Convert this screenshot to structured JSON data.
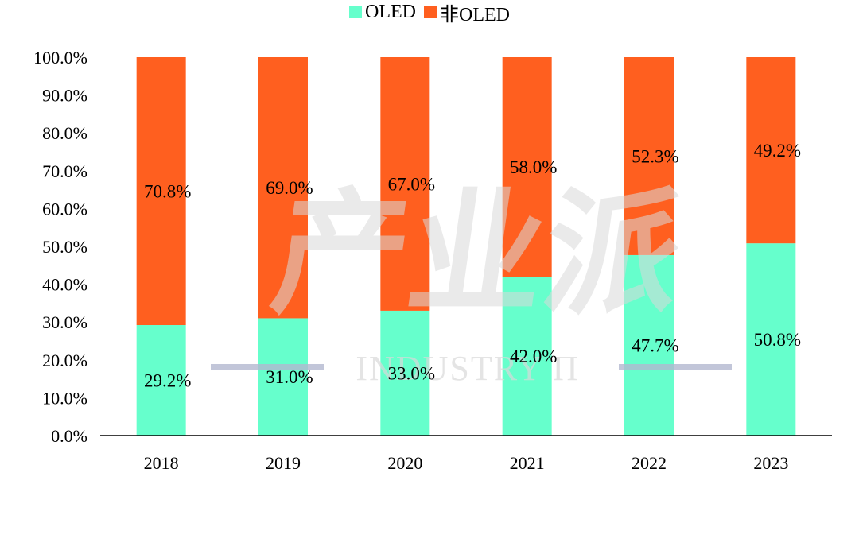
{
  "legend": [
    {
      "label": "OLED",
      "color": "#66FFCC"
    },
    {
      "label": "非OLED",
      "color": "#FF5F1F"
    }
  ],
  "watermark": {
    "main": "产业派",
    "sub": "INDUSTRY Π"
  },
  "chart_data": {
    "type": "bar",
    "stacked": true,
    "categories": [
      "2018",
      "2019",
      "2020",
      "2021",
      "2022",
      "2023"
    ],
    "series": [
      {
        "name": "OLED",
        "color": "#66FFCC",
        "values": [
          29.2,
          31.0,
          33.0,
          42.0,
          47.7,
          50.8
        ]
      },
      {
        "name": "非OLED",
        "color": "#FF5F1F",
        "values": [
          70.8,
          69.0,
          67.0,
          58.0,
          52.3,
          49.2
        ]
      }
    ],
    "data_labels": {
      "OLED": [
        "29.2%",
        "31.0%",
        "33.0%",
        "42.0%",
        "47.7%",
        "50.8%"
      ],
      "非OLED": [
        "70.8%",
        "69.0%",
        "67.0%",
        "58.0%",
        "52.3%",
        "49.2%"
      ]
    },
    "y_ticks": [
      "0.0%",
      "10.0%",
      "20.0%",
      "30.0%",
      "40.0%",
      "50.0%",
      "60.0%",
      "70.0%",
      "80.0%",
      "90.0%",
      "100.0%"
    ],
    "ylim": [
      0,
      100
    ],
    "legend_position": "top-center",
    "grid": false
  }
}
